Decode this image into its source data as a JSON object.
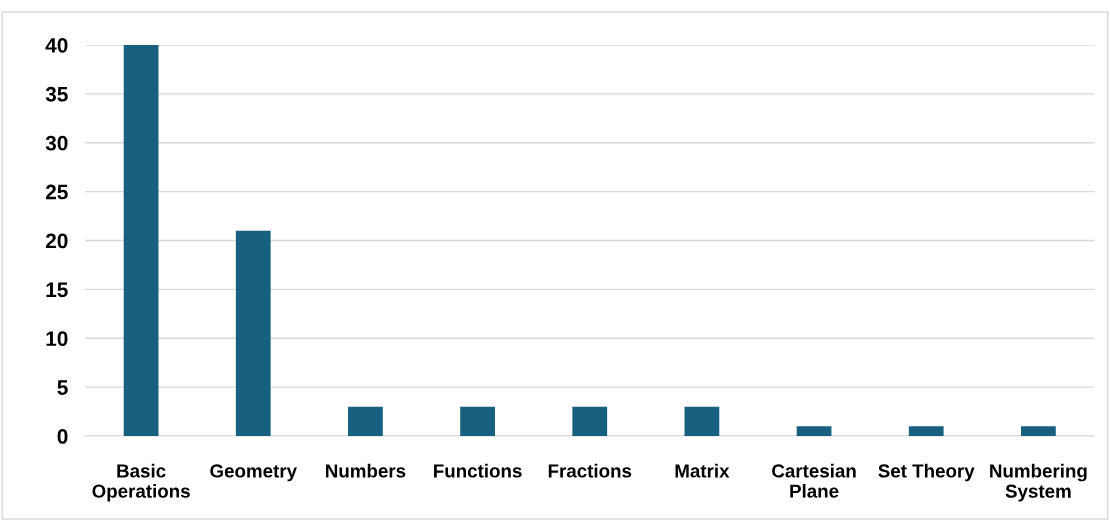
{
  "chart_data": {
    "type": "bar",
    "categories": [
      "Basic Operations",
      "Geometry",
      "Numbers",
      "Functions",
      "Fractions",
      "Matrix",
      "Cartesian Plane",
      "Set Theory",
      "Numbering System"
    ],
    "values": [
      40,
      21,
      3,
      3,
      3,
      3,
      1,
      1,
      1
    ],
    "color": "#17607f",
    "ylim": [
      0,
      40
    ],
    "yticks": [
      0,
      5,
      10,
      15,
      20,
      25,
      30,
      35,
      40
    ],
    "grid": "y",
    "legend": false
  }
}
